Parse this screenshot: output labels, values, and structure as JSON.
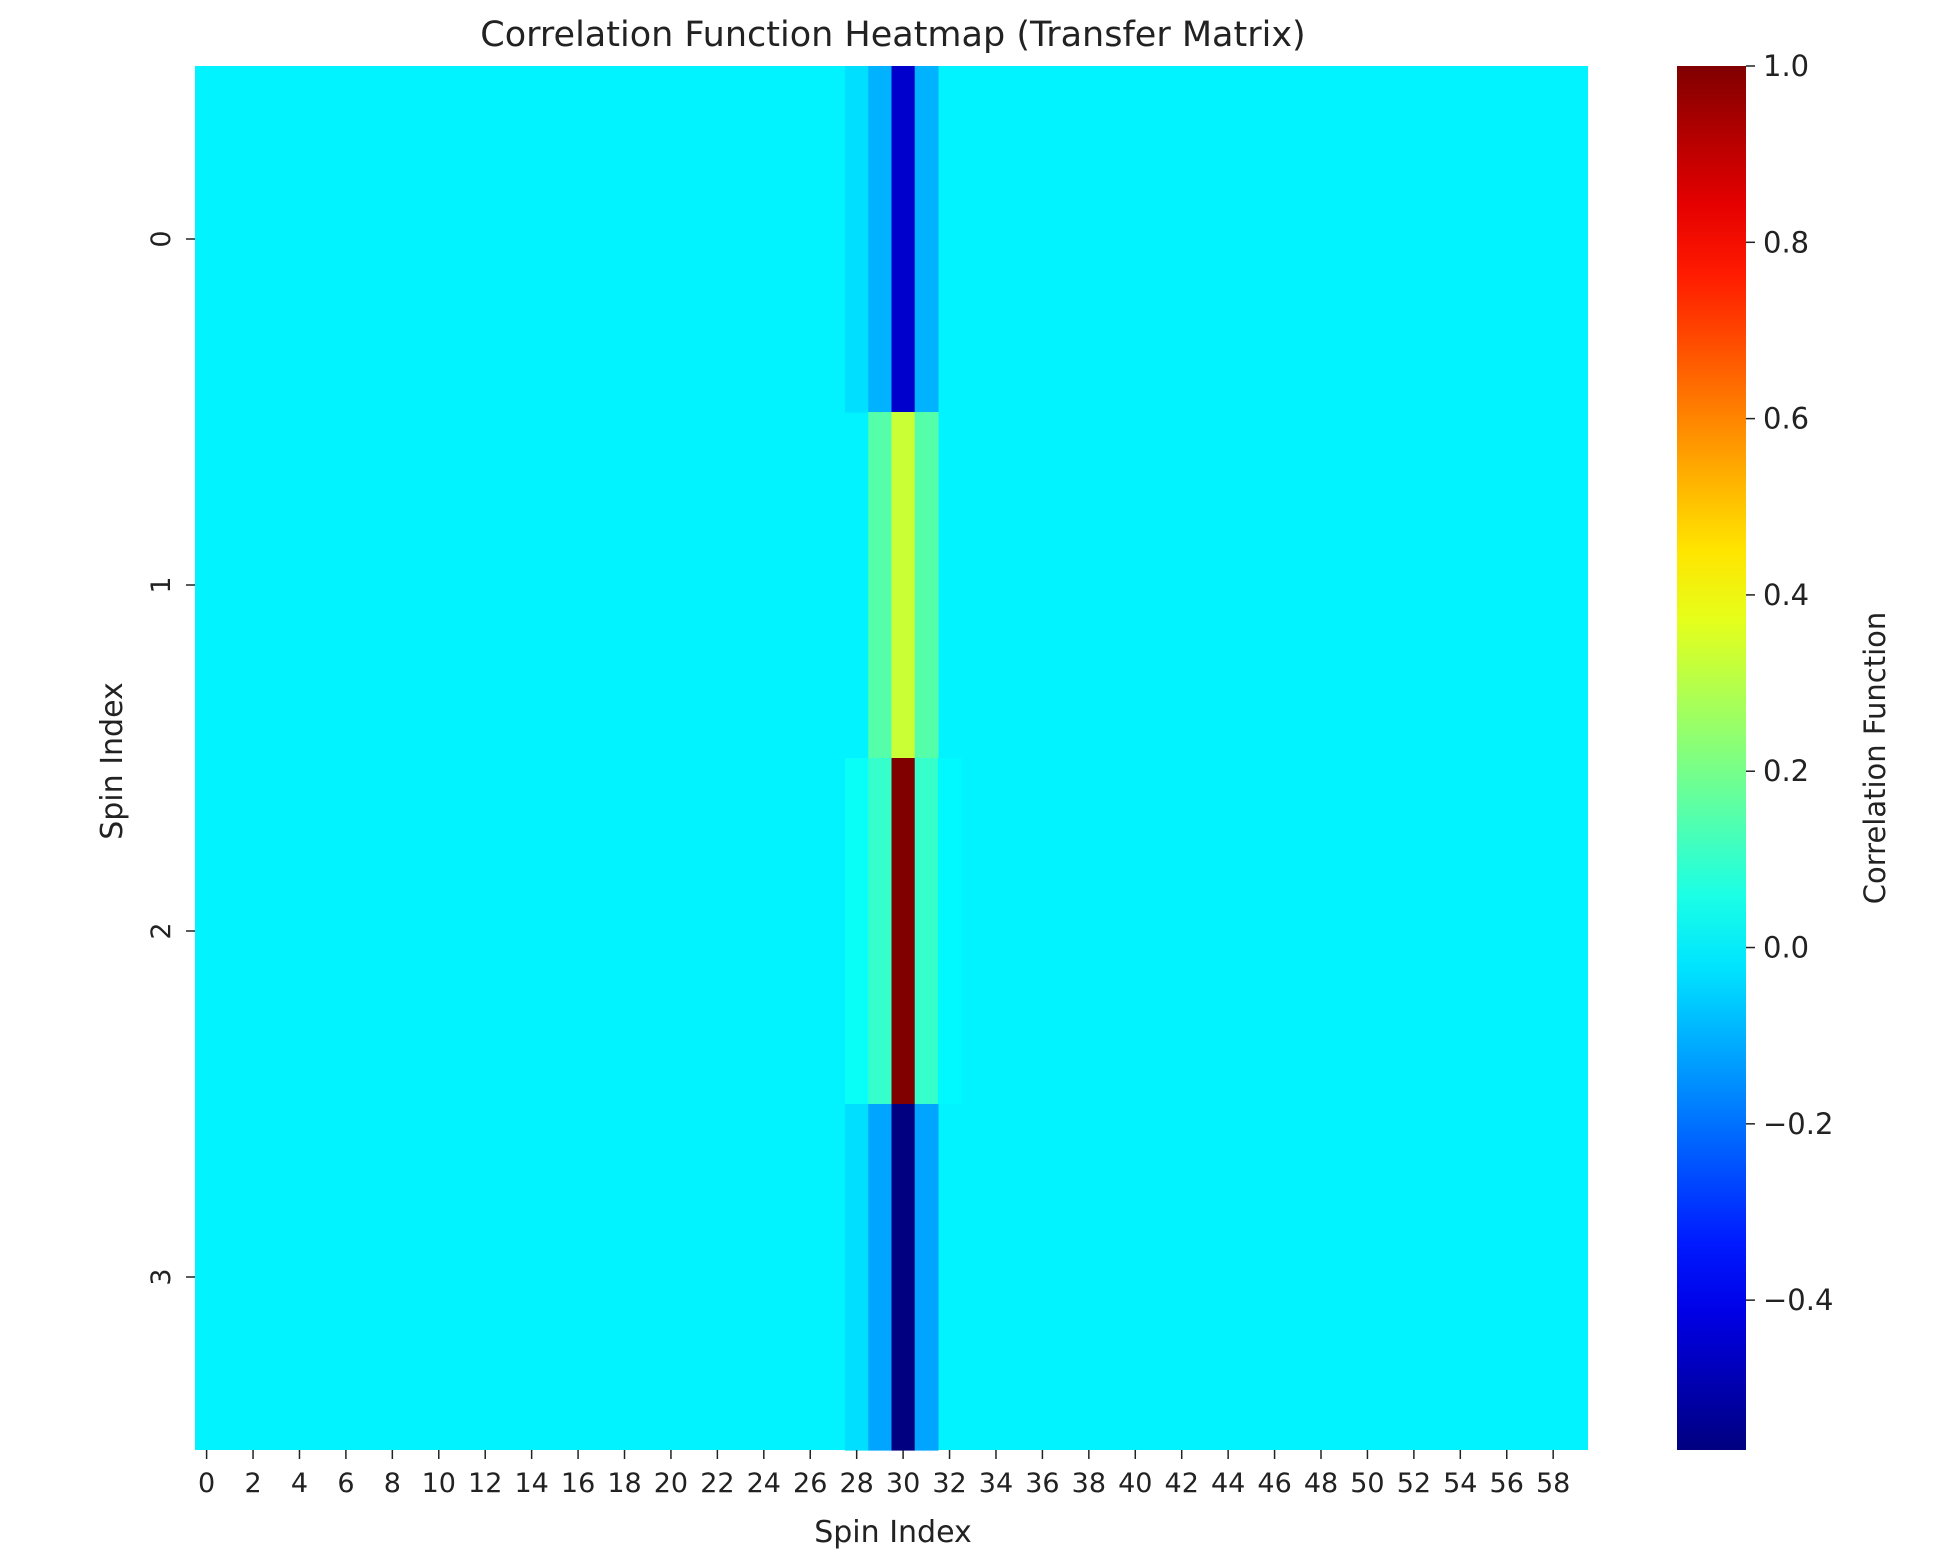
{
  "chart_data": {
    "type": "heatmap",
    "title": "Correlation Function Heatmap (Transfer Matrix)",
    "xlabel": "Spin Index",
    "ylabel": "Spin Index",
    "colorbar_label": "Correlation Function",
    "colormap": "jet",
    "colorbar_range": [
      -0.57,
      1.0
    ],
    "colorbar_ticks": [
      1.0,
      0.8,
      0.6,
      0.4,
      0.2,
      0.0,
      -0.2,
      -0.4
    ],
    "colorbar_tick_labels": [
      "1.0",
      "0.8",
      "0.6",
      "0.4",
      "0.2",
      "0.0",
      "−0.2",
      "−0.4"
    ],
    "n_cols": 60,
    "n_rows": 4,
    "x_ticks": [
      0,
      2,
      4,
      6,
      8,
      10,
      12,
      14,
      16,
      18,
      20,
      22,
      24,
      26,
      28,
      30,
      32,
      34,
      36,
      38,
      40,
      42,
      44,
      46,
      48,
      50,
      52,
      54,
      56,
      58
    ],
    "y_ticks": [
      0,
      1,
      2,
      3
    ],
    "background_value": 0.0,
    "cells": [
      {
        "row": 0,
        "col": 28,
        "value": -0.03
      },
      {
        "row": 0,
        "col": 29,
        "value": -0.1
      },
      {
        "row": 0,
        "col": 30,
        "value": -0.45
      },
      {
        "row": 0,
        "col": 31,
        "value": -0.1
      },
      {
        "row": 1,
        "col": 29,
        "value": 0.15
      },
      {
        "row": 1,
        "col": 30,
        "value": 0.33
      },
      {
        "row": 1,
        "col": 31,
        "value": 0.15
      },
      {
        "row": 2,
        "col": 28,
        "value": 0.03
      },
      {
        "row": 2,
        "col": 29,
        "value": 0.1
      },
      {
        "row": 2,
        "col": 30,
        "value": 1.0
      },
      {
        "row": 2,
        "col": 31,
        "value": 0.1
      },
      {
        "row": 2,
        "col": 32,
        "value": 0.01
      },
      {
        "row": 3,
        "col": 28,
        "value": -0.03
      },
      {
        "row": 3,
        "col": 29,
        "value": -0.12
      },
      {
        "row": 3,
        "col": 30,
        "value": -0.57
      },
      {
        "row": 3,
        "col": 31,
        "value": -0.12
      }
    ]
  }
}
